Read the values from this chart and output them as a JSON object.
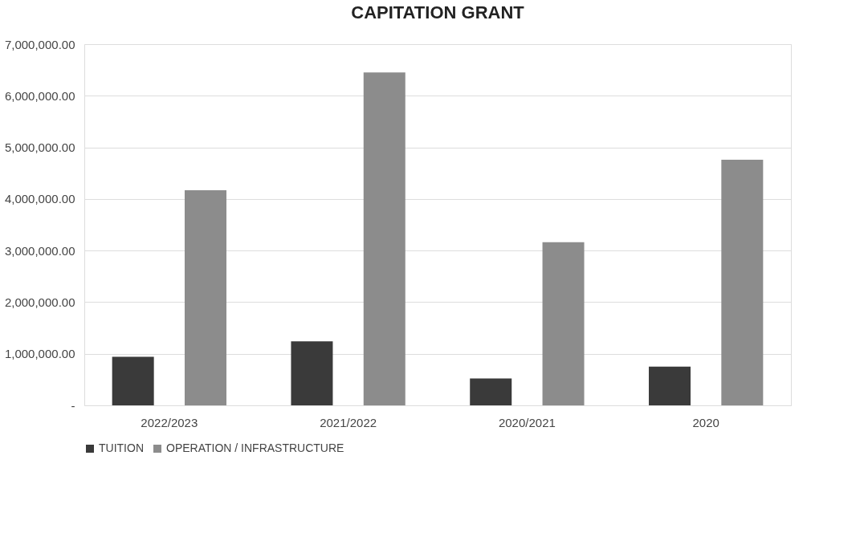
{
  "chart_data": {
    "type": "bar",
    "title": "CAPITATION GRANT",
    "categories": [
      "2022/2023",
      "2021/2022",
      "2020/2021",
      "2020"
    ],
    "series": [
      {
        "name": "TUITION",
        "color": "#3a3a3a",
        "values": [
          940000,
          1240000,
          520000,
          750000
        ]
      },
      {
        "name": "OPERATION / INFRASTRUCTURE",
        "color": "#8c8c8c",
        "values": [
          4170000,
          6450000,
          3160000,
          4760000
        ]
      }
    ],
    "ylim": [
      0,
      7000000
    ],
    "yticks": [
      {
        "value": 0,
        "label": "-"
      },
      {
        "value": 1000000,
        "label": "1,000,000.00"
      },
      {
        "value": 2000000,
        "label": "2,000,000.00"
      },
      {
        "value": 3000000,
        "label": "3,000,000.00"
      },
      {
        "value": 4000000,
        "label": "4,000,000.00"
      },
      {
        "value": 5000000,
        "label": "5,000,000.00"
      },
      {
        "value": 6000000,
        "label": "6,000,000.00"
      },
      {
        "value": 7000000,
        "label": "7,000,000.00"
      }
    ],
    "grid": "y",
    "legend": "bottom"
  }
}
